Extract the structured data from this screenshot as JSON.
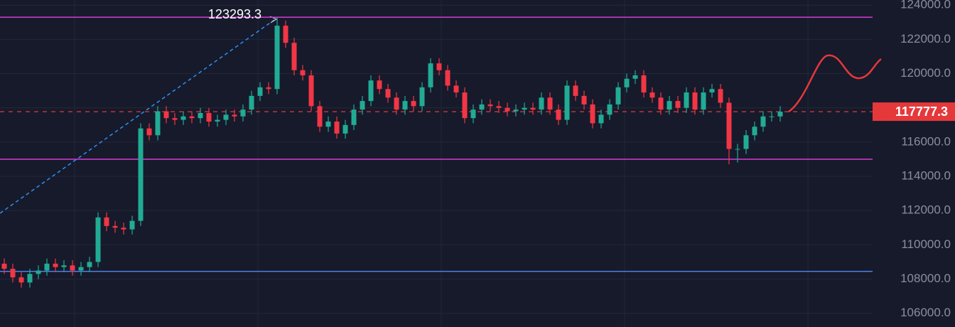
{
  "chart_data": {
    "type": "candlestick",
    "up_color": "#22ab94",
    "down_color": "#f23645",
    "open": [
      108900,
      108600,
      108100,
      107800,
      108300,
      108500,
      108900,
      108700,
      108800,
      108500,
      108700,
      109000,
      111600,
      111100,
      111000,
      110900,
      111400,
      116800,
      116400,
      117800,
      117400,
      117300,
      117500,
      117400,
      117700,
      117200,
      117300,
      117600,
      117500,
      117900,
      118700,
      119200,
      119100,
      122800,
      121800,
      120200,
      119900,
      118100,
      116900,
      117200,
      116500,
      117000,
      117900,
      118400,
      119600,
      119100,
      118600,
      117900,
      118400,
      118100,
      119200,
      120600,
      120200,
      119300,
      118900,
      117400,
      117900,
      118200,
      118100,
      118000,
      117800,
      117900,
      118000,
      117900,
      118600,
      117900,
      117300,
      119300,
      118700,
      118200,
      117100,
      117600,
      118200,
      119200,
      119700,
      119900,
      118900,
      118600,
      117900,
      118400,
      118000,
      118900,
      117900,
      118900,
      119100,
      118300,
      115600,
      115600,
      116400,
      116900,
      117500,
      117500
    ],
    "high": [
      109200,
      108900,
      108400,
      108600,
      108800,
      109200,
      109200,
      109100,
      109100,
      109000,
      109300,
      111900,
      111900,
      111400,
      111300,
      111700,
      117100,
      117100,
      118100,
      118100,
      117700,
      117800,
      117800,
      118000,
      118000,
      117600,
      117900,
      117900,
      118200,
      119000,
      119500,
      119500,
      123293.3,
      123100,
      122100,
      120500,
      120200,
      118400,
      117500,
      117500,
      117300,
      118200,
      118700,
      119900,
      119900,
      119400,
      118900,
      118700,
      118700,
      119500,
      120900,
      120900,
      120500,
      119600,
      119200,
      118200,
      118500,
      118500,
      118400,
      118300,
      118200,
      118300,
      118300,
      118900,
      118900,
      118200,
      119600,
      119600,
      119000,
      118500,
      117900,
      118500,
      119500,
      120000,
      120200,
      120200,
      119200,
      118900,
      118700,
      118700,
      119200,
      119200,
      119200,
      119400,
      119400,
      118600,
      115900,
      116700,
      117200,
      117800,
      117800,
      118100
    ],
    "low": [
      108300,
      107800,
      107500,
      107500,
      108000,
      108200,
      108400,
      108400,
      108200,
      108200,
      108400,
      108700,
      110800,
      110700,
      110600,
      110600,
      111100,
      116100,
      116100,
      117100,
      117000,
      117000,
      117100,
      117100,
      116900,
      116900,
      117000,
      117200,
      117200,
      117600,
      118400,
      118800,
      118800,
      121500,
      119900,
      119600,
      117800,
      116600,
      116600,
      116200,
      116200,
      116700,
      117600,
      118100,
      118800,
      118300,
      117600,
      117600,
      117800,
      117800,
      118900,
      119900,
      119000,
      118600,
      117100,
      117100,
      117600,
      117800,
      117700,
      117500,
      117500,
      117600,
      117600,
      117600,
      117600,
      117000,
      117000,
      118400,
      117900,
      116800,
      116800,
      117300,
      117900,
      118900,
      119400,
      118600,
      118300,
      117600,
      117600,
      117700,
      117700,
      117600,
      117600,
      118600,
      118000,
      114700,
      114800,
      115300,
      116100,
      116600,
      117200,
      117200
    ],
    "close": [
      108600,
      108100,
      107800,
      108300,
      108500,
      108900,
      108700,
      108800,
      108500,
      108700,
      109000,
      111600,
      111100,
      111000,
      110900,
      111400,
      116800,
      116400,
      117800,
      117400,
      117300,
      117500,
      117400,
      117700,
      117200,
      117300,
      117600,
      117500,
      117900,
      118700,
      119200,
      119100,
      122800,
      121800,
      120200,
      119900,
      118100,
      116900,
      117200,
      116500,
      117000,
      117900,
      118400,
      119600,
      119100,
      118600,
      117900,
      118400,
      118100,
      119200,
      120600,
      120200,
      119300,
      118900,
      117400,
      117900,
      118200,
      118100,
      118000,
      117800,
      117900,
      118000,
      117900,
      118600,
      117900,
      117300,
      119300,
      118700,
      118200,
      117100,
      117600,
      118200,
      119200,
      119700,
      119900,
      118900,
      118600,
      117900,
      118400,
      118000,
      118900,
      117900,
      118900,
      119100,
      118300,
      115600,
      115600,
      116400,
      116900,
      117500,
      117500,
      117777.3
    ],
    "ylim": [
      105200,
      124300
    ],
    "yticks": [
      {
        "value": 106000,
        "label": "106000.0"
      },
      {
        "value": 108000,
        "label": "108000.0"
      },
      {
        "value": 110000,
        "label": "110000.0"
      },
      {
        "value": 112000,
        "label": "112000.0"
      },
      {
        "value": 114000,
        "label": "114000.0"
      },
      {
        "value": 116000,
        "label": "116000.0"
      },
      {
        "value": 118000,
        "label": "118000.0"
      },
      {
        "value": 120000,
        "label": "120000.0"
      },
      {
        "value": 122000,
        "label": "122000.0"
      },
      {
        "value": 124000,
        "label": "124000.0"
      }
    ],
    "grid": true,
    "lines": [
      {
        "value": 123293.3,
        "color": "#d63ad6"
      },
      {
        "value": 115000,
        "color": "#d63ad6"
      },
      {
        "value": 108450,
        "color": "#4d7fe6"
      }
    ],
    "annotation": {
      "value": 123293.3,
      "label": "123293.3"
    },
    "last_price": {
      "value": 117777.3,
      "label": "117777.3",
      "color": "#e5383b"
    }
  }
}
